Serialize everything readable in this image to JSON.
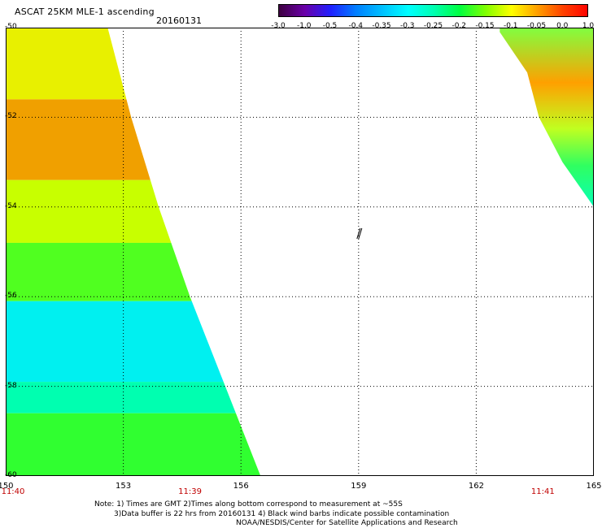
{
  "header": {
    "title": "ASCAT 25KM MLE-1 ascending",
    "date": "20160131"
  },
  "colorbar": {
    "labels": [
      "-3.0",
      "-1.0",
      "-0.5",
      "-0.4",
      "-0.35",
      "-0.3",
      "-0.25",
      "-0.2",
      "-0.15",
      "-0.1",
      "-0.05",
      "0.0",
      "1.0"
    ],
    "colors": [
      "#3d0040",
      "#6a00a8",
      "#2020ff",
      "#0080ff",
      "#00c0ff",
      "#00ffff",
      "#00ffb0",
      "#00ff40",
      "#80ff00",
      "#ffff00",
      "#ffa000",
      "#ff4000",
      "#ff0000"
    ]
  },
  "map": {
    "lat_labels": [
      "-50",
      "-52",
      "-54",
      "-56",
      "-58",
      "-60"
    ],
    "lon_labels": [
      "150",
      "153",
      "156",
      "159",
      "162",
      "165"
    ],
    "lat_range": [
      -60,
      -50
    ],
    "lon_range": [
      150,
      165
    ],
    "time_labels": [
      {
        "text": "11:40",
        "lon": 150
      },
      {
        "text": "11:39",
        "lon": 154.7
      },
      {
        "text": "11:41",
        "lon": 163.7
      }
    ],
    "swaths": {
      "west_edge": [
        {
          "lat": -50.0,
          "lon": 152.6
        },
        {
          "lat": -52.0,
          "lon": 153.2
        },
        {
          "lat": -54.0,
          "lon": 153.9
        },
        {
          "lat": -56.0,
          "lon": 154.7
        },
        {
          "lat": -58.0,
          "lon": 155.6
        },
        {
          "lat": -60.0,
          "lon": 156.5
        }
      ],
      "east_edge": [
        {
          "lat": -50.1,
          "lon": 162.6
        },
        {
          "lat": -51.0,
          "lon": 163.3
        },
        {
          "lat": -52.0,
          "lon": 163.6
        },
        {
          "lat": -53.0,
          "lon": 164.2
        },
        {
          "lat": -54.0,
          "lon": 165.0
        }
      ],
      "west_bands": [
        {
          "from_lat": -50.0,
          "to_lat": -51.6,
          "color": "#e8f000"
        },
        {
          "from_lat": -51.6,
          "to_lat": -53.4,
          "color": "#f0a000"
        },
        {
          "from_lat": -53.4,
          "to_lat": -54.8,
          "color": "#c8ff00"
        },
        {
          "from_lat": -54.8,
          "to_lat": -56.1,
          "color": "#50ff20"
        },
        {
          "from_lat": -56.1,
          "to_lat": -57.9,
          "color": "#00f0f0"
        },
        {
          "from_lat": -57.9,
          "to_lat": -58.6,
          "color": "#00ffb0"
        },
        {
          "from_lat": -58.6,
          "to_lat": -60.0,
          "color": "#30ff30"
        }
      ]
    },
    "wind_barb": {
      "lat": -54.6,
      "lon": 159.0
    }
  },
  "notes": [
    "Note: 1) Times are GMT 2)Times along bottom correspond to measurement at ~55S",
    "3)Data buffer is 22 hrs from 20160131 4) Black wind barbs indicate possible contamination",
    "NOAA/NESDIS/Center for Satellite Applications and Research"
  ]
}
